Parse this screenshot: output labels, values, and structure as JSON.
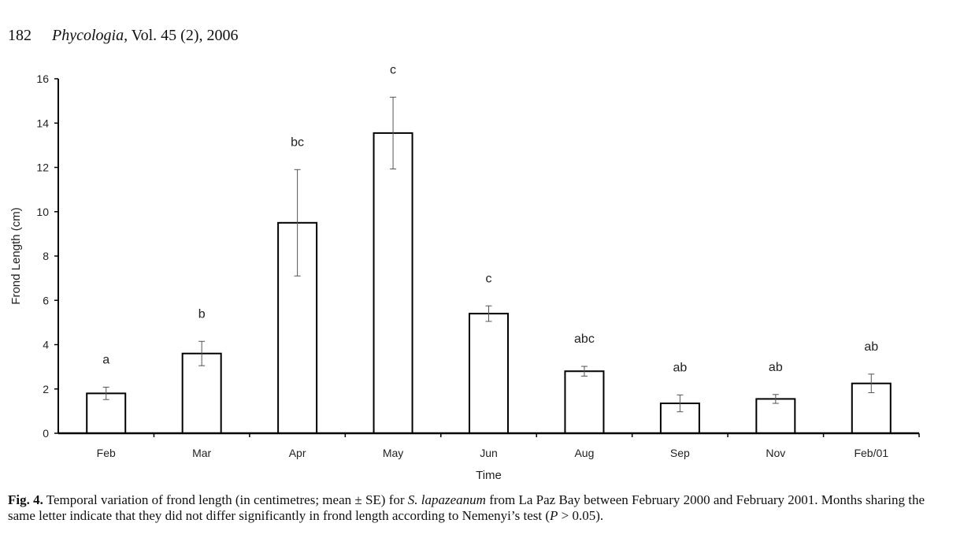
{
  "header": {
    "page_number": "182",
    "journal": "Phycologia,",
    "volume": "Vol. 45 (2), 2006"
  },
  "chart_data": {
    "type": "bar",
    "categories": [
      "Feb",
      "Mar",
      "Apr",
      "May",
      "Jun",
      "Aug",
      "Sep",
      "Nov",
      "Feb/01"
    ],
    "values": [
      1.8,
      3.6,
      9.5,
      13.55,
      5.4,
      2.8,
      1.35,
      1.55,
      2.25
    ],
    "errors": [
      0.28,
      0.55,
      2.4,
      1.62,
      0.35,
      0.22,
      0.38,
      0.2,
      0.42
    ],
    "group_letters": [
      "a",
      "b",
      "bc",
      "c",
      "c",
      "abc",
      "ab",
      "ab",
      "ab"
    ],
    "xlabel": "Time",
    "ylabel": "Frond Length (cm)",
    "ylim": [
      0,
      16
    ],
    "yticks": [
      "0",
      "2",
      "4",
      "6",
      "8",
      "10",
      "12",
      "14",
      "16"
    ],
    "grid": false,
    "legend": "none"
  },
  "caption": {
    "label": "Fig. 4.",
    "text_1": " Temporal variation of frond length (in centimetres; mean ± SE) for ",
    "species": "S. lapazeanum",
    "text_2": " from La Paz Bay between February 2000 and February 2001. Months sharing the same letter indicate that they did not differ significantly in frond length according to Nemenyi’s test (",
    "p_symbol": "P",
    "text_3": " > 0.05)."
  }
}
